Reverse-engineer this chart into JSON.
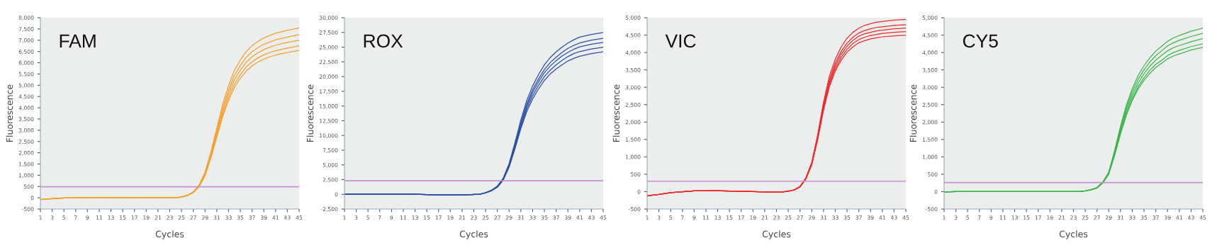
{
  "chart_data": [
    {
      "type": "line",
      "annotations": [
        "FAM"
      ],
      "xlabel": "Cycles",
      "ylabel": "Fluorescence",
      "x": [
        1,
        3,
        5,
        9,
        13,
        17,
        21,
        24,
        25,
        26,
        27,
        28,
        29,
        30,
        31,
        32,
        33,
        34,
        35,
        36,
        37,
        38,
        39,
        40,
        41,
        43,
        45
      ],
      "xlim": [
        1,
        45
      ],
      "xticks": [
        1,
        3,
        5,
        7,
        9,
        11,
        13,
        15,
        17,
        19,
        21,
        23,
        25,
        27,
        29,
        31,
        33,
        35,
        37,
        39,
        41,
        43,
        45
      ],
      "ylim": [
        -500,
        8000
      ],
      "yticks": [
        -500,
        0,
        500,
        {
          "value": 1000,
          "label": "1,000"
        },
        {
          "value": 1500,
          "label": "1,500"
        },
        {
          "value": 2000,
          "label": "2,000"
        },
        {
          "value": 2500,
          "label": "2,500"
        },
        {
          "value": 3000,
          "label": "3,000"
        },
        {
          "value": 3500,
          "label": "3,500"
        },
        {
          "value": 4000,
          "label": "4,000"
        },
        {
          "value": 4500,
          "label": "4,500"
        },
        {
          "value": 5000,
          "label": "5,000"
        },
        {
          "value": 5500,
          "label": "5,500"
        },
        {
          "value": 6000,
          "label": "6,000"
        },
        {
          "value": 6500,
          "label": "6,500"
        },
        {
          "value": 7000,
          "label": "7,000"
        },
        {
          "value": 7500,
          "label": "7,500"
        },
        {
          "value": 8000,
          "label": "8,000"
        }
      ],
      "ref_lines": [
        {
          "axis": "y",
          "value": 490,
          "color": "#c88fd0"
        }
      ],
      "series": [
        {
          "color": "#f5a030",
          "values": [
            -80,
            -40,
            -10,
            10,
            10,
            0,
            0,
            0,
            40,
            110,
            260,
            570,
            1130,
            2040,
            3100,
            4150,
            4980,
            5660,
            6120,
            6490,
            6760,
            6950,
            7100,
            7210,
            7310,
            7440,
            7550
          ]
        },
        {
          "color": "#f5a030",
          "values": [
            -80,
            -40,
            -10,
            10,
            10,
            0,
            0,
            0,
            40,
            110,
            250,
            540,
            1090,
            1960,
            2970,
            3990,
            4790,
            5440,
            5870,
            6240,
            6490,
            6670,
            6820,
            6920,
            7020,
            7140,
            7250
          ]
        },
        {
          "color": "#f5a030",
          "values": [
            -80,
            -40,
            -10,
            10,
            10,
            0,
            0,
            0,
            40,
            110,
            250,
            530,
            1050,
            1890,
            2870,
            3850,
            4620,
            5250,
            5670,
            6020,
            6270,
            6440,
            6580,
            6690,
            6780,
            6900,
            7000
          ]
        },
        {
          "color": "#f5a030",
          "values": [
            -80,
            -40,
            -10,
            10,
            10,
            0,
            0,
            0,
            30,
            100,
            240,
            510,
            1010,
            1820,
            2770,
            3710,
            4460,
            5060,
            5470,
            5810,
            6040,
            6210,
            6350,
            6450,
            6530,
            6650,
            6750
          ]
        },
        {
          "color": "#f5a030",
          "values": [
            -80,
            -40,
            -10,
            10,
            10,
            0,
            0,
            0,
            30,
            100,
            230,
            490,
            980,
            1770,
            2690,
            3600,
            4320,
            4910,
            5310,
            5630,
            5860,
            6030,
            6160,
            6260,
            6340,
            6450,
            6550
          ]
        }
      ]
    },
    {
      "type": "line",
      "annotations": [
        "ROX"
      ],
      "xlabel": "Cycles",
      "ylabel": "Fluorescence",
      "x": [
        1,
        3,
        5,
        9,
        13,
        17,
        21,
        24,
        25,
        26,
        27,
        28,
        29,
        30,
        31,
        32,
        33,
        34,
        35,
        36,
        37,
        38,
        39,
        40,
        41,
        43,
        45
      ],
      "xlim": [
        1,
        45
      ],
      "xticks": [
        1,
        3,
        5,
        7,
        9,
        11,
        13,
        15,
        17,
        19,
        21,
        23,
        25,
        27,
        29,
        31,
        33,
        35,
        37,
        39,
        41,
        43,
        45
      ],
      "ylim": [
        -2500,
        30000
      ],
      "yticks": [
        {
          "value": -2500,
          "label": "-2,500"
        },
        0,
        {
          "value": 2500,
          "label": "2,500"
        },
        {
          "value": 5000,
          "label": "5,000"
        },
        {
          "value": 7500,
          "label": "7,500"
        },
        {
          "value": 10000,
          "label": "10,000"
        },
        {
          "value": 12500,
          "label": "12,500"
        },
        {
          "value": 15000,
          "label": "15,000"
        },
        {
          "value": 17500,
          "label": "17,500"
        },
        {
          "value": 20000,
          "label": "20,000"
        },
        {
          "value": 22500,
          "label": "22,500"
        },
        {
          "value": 25000,
          "label": "25,000"
        },
        {
          "value": 27500,
          "label": "27,500"
        },
        {
          "value": 30000,
          "label": "30,000"
        }
      ],
      "ref_lines": [
        {
          "axis": "y",
          "value": 2300,
          "color": "#c88fd0"
        }
      ],
      "series": [
        {
          "color": "#2b4fa8",
          "values": [
            0,
            0,
            0,
            0,
            0,
            -100,
            -100,
            0,
            300,
            700,
            1400,
            2750,
            5200,
            8800,
            12650,
            15950,
            18400,
            20350,
            22000,
            23250,
            24200,
            25000,
            25700,
            26250,
            26700,
            27150,
            27500
          ]
        },
        {
          "color": "#2b4fa8",
          "values": [
            0,
            0,
            0,
            0,
            0,
            -100,
            -100,
            0,
            250,
            650,
            1300,
            2650,
            5050,
            8500,
            12200,
            15350,
            17750,
            19600,
            21200,
            22400,
            23300,
            24100,
            24800,
            25300,
            25700,
            26200,
            26500
          ]
        },
        {
          "color": "#2b4fa8",
          "values": [
            0,
            0,
            0,
            0,
            0,
            -100,
            -100,
            0,
            250,
            650,
            1300,
            2600,
            4900,
            8250,
            11850,
            14950,
            17300,
            19100,
            20650,
            21800,
            22700,
            23500,
            24100,
            24650,
            25050,
            25500,
            25800
          ]
        },
        {
          "color": "#2b4fa8",
          "values": [
            0,
            0,
            0,
            0,
            0,
            -100,
            -100,
            0,
            250,
            600,
            1250,
            2500,
            4750,
            8000,
            11500,
            14500,
            16750,
            18500,
            20000,
            21100,
            22000,
            22750,
            23400,
            23900,
            24250,
            24700,
            25000
          ]
        },
        {
          "color": "#2b4fa8",
          "values": [
            0,
            0,
            0,
            0,
            0,
            -100,
            -100,
            0,
            250,
            600,
            1200,
            2400,
            4600,
            7750,
            11150,
            14050,
            16200,
            17900,
            19350,
            20450,
            21300,
            22000,
            22650,
            23100,
            23450,
            23900,
            24200
          ]
        }
      ]
    },
    {
      "type": "line",
      "annotations": [
        "VIC"
      ],
      "xlabel": "Cycles",
      "ylabel": "Fluorescence",
      "x": [
        1,
        3,
        5,
        9,
        13,
        17,
        21,
        24,
        25,
        26,
        27,
        28,
        29,
        30,
        31,
        32,
        33,
        34,
        35,
        36,
        37,
        38,
        39,
        40,
        41,
        43,
        45
      ],
      "xlim": [
        1,
        45
      ],
      "xticks": [
        1,
        3,
        5,
        7,
        9,
        11,
        13,
        15,
        17,
        19,
        21,
        23,
        25,
        27,
        29,
        31,
        33,
        35,
        37,
        39,
        41,
        43,
        45
      ],
      "ylim": [
        -500,
        5000
      ],
      "yticks": [
        -500,
        0,
        500,
        {
          "value": 1000,
          "label": "1,000"
        },
        {
          "value": 1500,
          "label": "1,500"
        },
        {
          "value": 2000,
          "label": "2,000"
        },
        {
          "value": 2500,
          "label": "2,500"
        },
        {
          "value": 3000,
          "label": "3,000"
        },
        {
          "value": 3500,
          "label": "3,500"
        },
        {
          "value": 4000,
          "label": "4,000"
        },
        {
          "value": 4500,
          "label": "4,500"
        },
        {
          "value": 5000,
          "label": "5,000"
        }
      ],
      "ref_lines": [
        {
          "axis": "y",
          "value": 300,
          "color": "#c88fd0"
        }
      ],
      "series": [
        {
          "color": "#ee2a2a",
          "values": [
            -120,
            -80,
            -30,
            20,
            25,
            10,
            -10,
            -10,
            10,
            50,
            150,
            400,
            840,
            1630,
            2570,
            3320,
            3810,
            4160,
            4410,
            4580,
            4700,
            4780,
            4830,
            4870,
            4890,
            4930,
            4950
          ]
        },
        {
          "color": "#ee2a2a",
          "values": [
            -120,
            -80,
            -30,
            20,
            25,
            10,
            -10,
            -10,
            10,
            50,
            140,
            380,
            820,
            1580,
            2500,
            3220,
            3700,
            4030,
            4270,
            4440,
            4560,
            4630,
            4680,
            4720,
            4740,
            4780,
            4800
          ]
        },
        {
          "color": "#ee2a2a",
          "values": [
            -120,
            -80,
            -30,
            20,
            25,
            10,
            -10,
            -10,
            10,
            50,
            140,
            380,
            800,
            1550,
            2440,
            3150,
            3620,
            3950,
            4180,
            4350,
            4470,
            4540,
            4580,
            4620,
            4640,
            4680,
            4700
          ]
        },
        {
          "color": "#ee2a2a",
          "values": [
            -120,
            -80,
            -30,
            20,
            25,
            10,
            -10,
            -10,
            10,
            50,
            140,
            370,
            780,
            1520,
            2390,
            3080,
            3540,
            3860,
            4090,
            4260,
            4370,
            4440,
            4490,
            4520,
            4550,
            4580,
            4600
          ]
        },
        {
          "color": "#ee2a2a",
          "values": [
            -120,
            -80,
            -30,
            20,
            25,
            10,
            -10,
            -10,
            10,
            40,
            130,
            360,
            770,
            1490,
            2340,
            3020,
            3470,
            3780,
            4010,
            4160,
            4280,
            4340,
            4390,
            4420,
            4450,
            4480,
            4500
          ]
        }
      ]
    },
    {
      "type": "line",
      "annotations": [
        "CY5"
      ],
      "xlabel": "Cycles",
      "ylabel": "Fluorescence",
      "x": [
        1,
        3,
        5,
        9,
        13,
        17,
        21,
        24,
        25,
        26,
        27,
        28,
        29,
        30,
        31,
        32,
        33,
        34,
        35,
        36,
        37,
        38,
        39,
        40,
        41,
        43,
        45
      ],
      "xlim": [
        1,
        45
      ],
      "xticks": [
        1,
        3,
        5,
        7,
        9,
        11,
        13,
        15,
        17,
        19,
        21,
        23,
        25,
        27,
        29,
        31,
        33,
        35,
        37,
        39,
        41,
        43,
        45
      ],
      "ylim": [
        -500,
        5000
      ],
      "yticks": [
        -500,
        0,
        500,
        {
          "value": 1000,
          "label": "1,000"
        },
        {
          "value": 1500,
          "label": "1,500"
        },
        {
          "value": 2000,
          "label": "2,000"
        },
        {
          "value": 2500,
          "label": "2,500"
        },
        {
          "value": 3000,
          "label": "3,000"
        },
        {
          "value": 3500,
          "label": "3,500"
        },
        {
          "value": 4000,
          "label": "4,000"
        },
        {
          "value": 4500,
          "label": "4,500"
        },
        {
          "value": 5000,
          "label": "5,000"
        }
      ],
      "ref_lines": [
        {
          "axis": "y",
          "value": 260,
          "color": "#c88fd0"
        }
      ],
      "series": [
        {
          "color": "#3cb54a",
          "values": [
            -10,
            0,
            0,
            0,
            0,
            0,
            0,
            0,
            20,
            60,
            120,
            280,
            560,
            1180,
            1880,
            2490,
            2960,
            3340,
            3620,
            3850,
            4040,
            4180,
            4320,
            4420,
            4490,
            4610,
            4700
          ]
        },
        {
          "color": "#3cb54a",
          "values": [
            -10,
            0,
            0,
            0,
            0,
            0,
            0,
            0,
            20,
            60,
            110,
            270,
            550,
            1140,
            1820,
            2410,
            2870,
            3230,
            3500,
            3730,
            3910,
            4050,
            4190,
            4280,
            4350,
            4460,
            4550
          ]
        },
        {
          "color": "#3cb54a",
          "values": [
            -10,
            0,
            0,
            0,
            0,
            0,
            0,
            0,
            20,
            50,
            110,
            260,
            530,
            1100,
            1760,
            2330,
            2770,
            3120,
            3390,
            3610,
            3780,
            3920,
            4050,
            4140,
            4200,
            4310,
            4400
          ]
        },
        {
          "color": "#3cb54a",
          "values": [
            -10,
            0,
            0,
            0,
            0,
            0,
            0,
            0,
            20,
            50,
            110,
            260,
            510,
            1060,
            1700,
            2250,
            2680,
            3020,
            3270,
            3490,
            3660,
            3780,
            3910,
            4000,
            4060,
            4170,
            4250
          ]
        },
        {
          "color": "#3cb54a",
          "values": [
            -10,
            0,
            0,
            0,
            0,
            0,
            0,
            0,
            20,
            50,
            100,
            250,
            500,
            1040,
            1660,
            2200,
            2620,
            2950,
            3200,
            3400,
            3570,
            3690,
            3820,
            3900,
            3960,
            4070,
            4150
          ]
        }
      ]
    }
  ]
}
